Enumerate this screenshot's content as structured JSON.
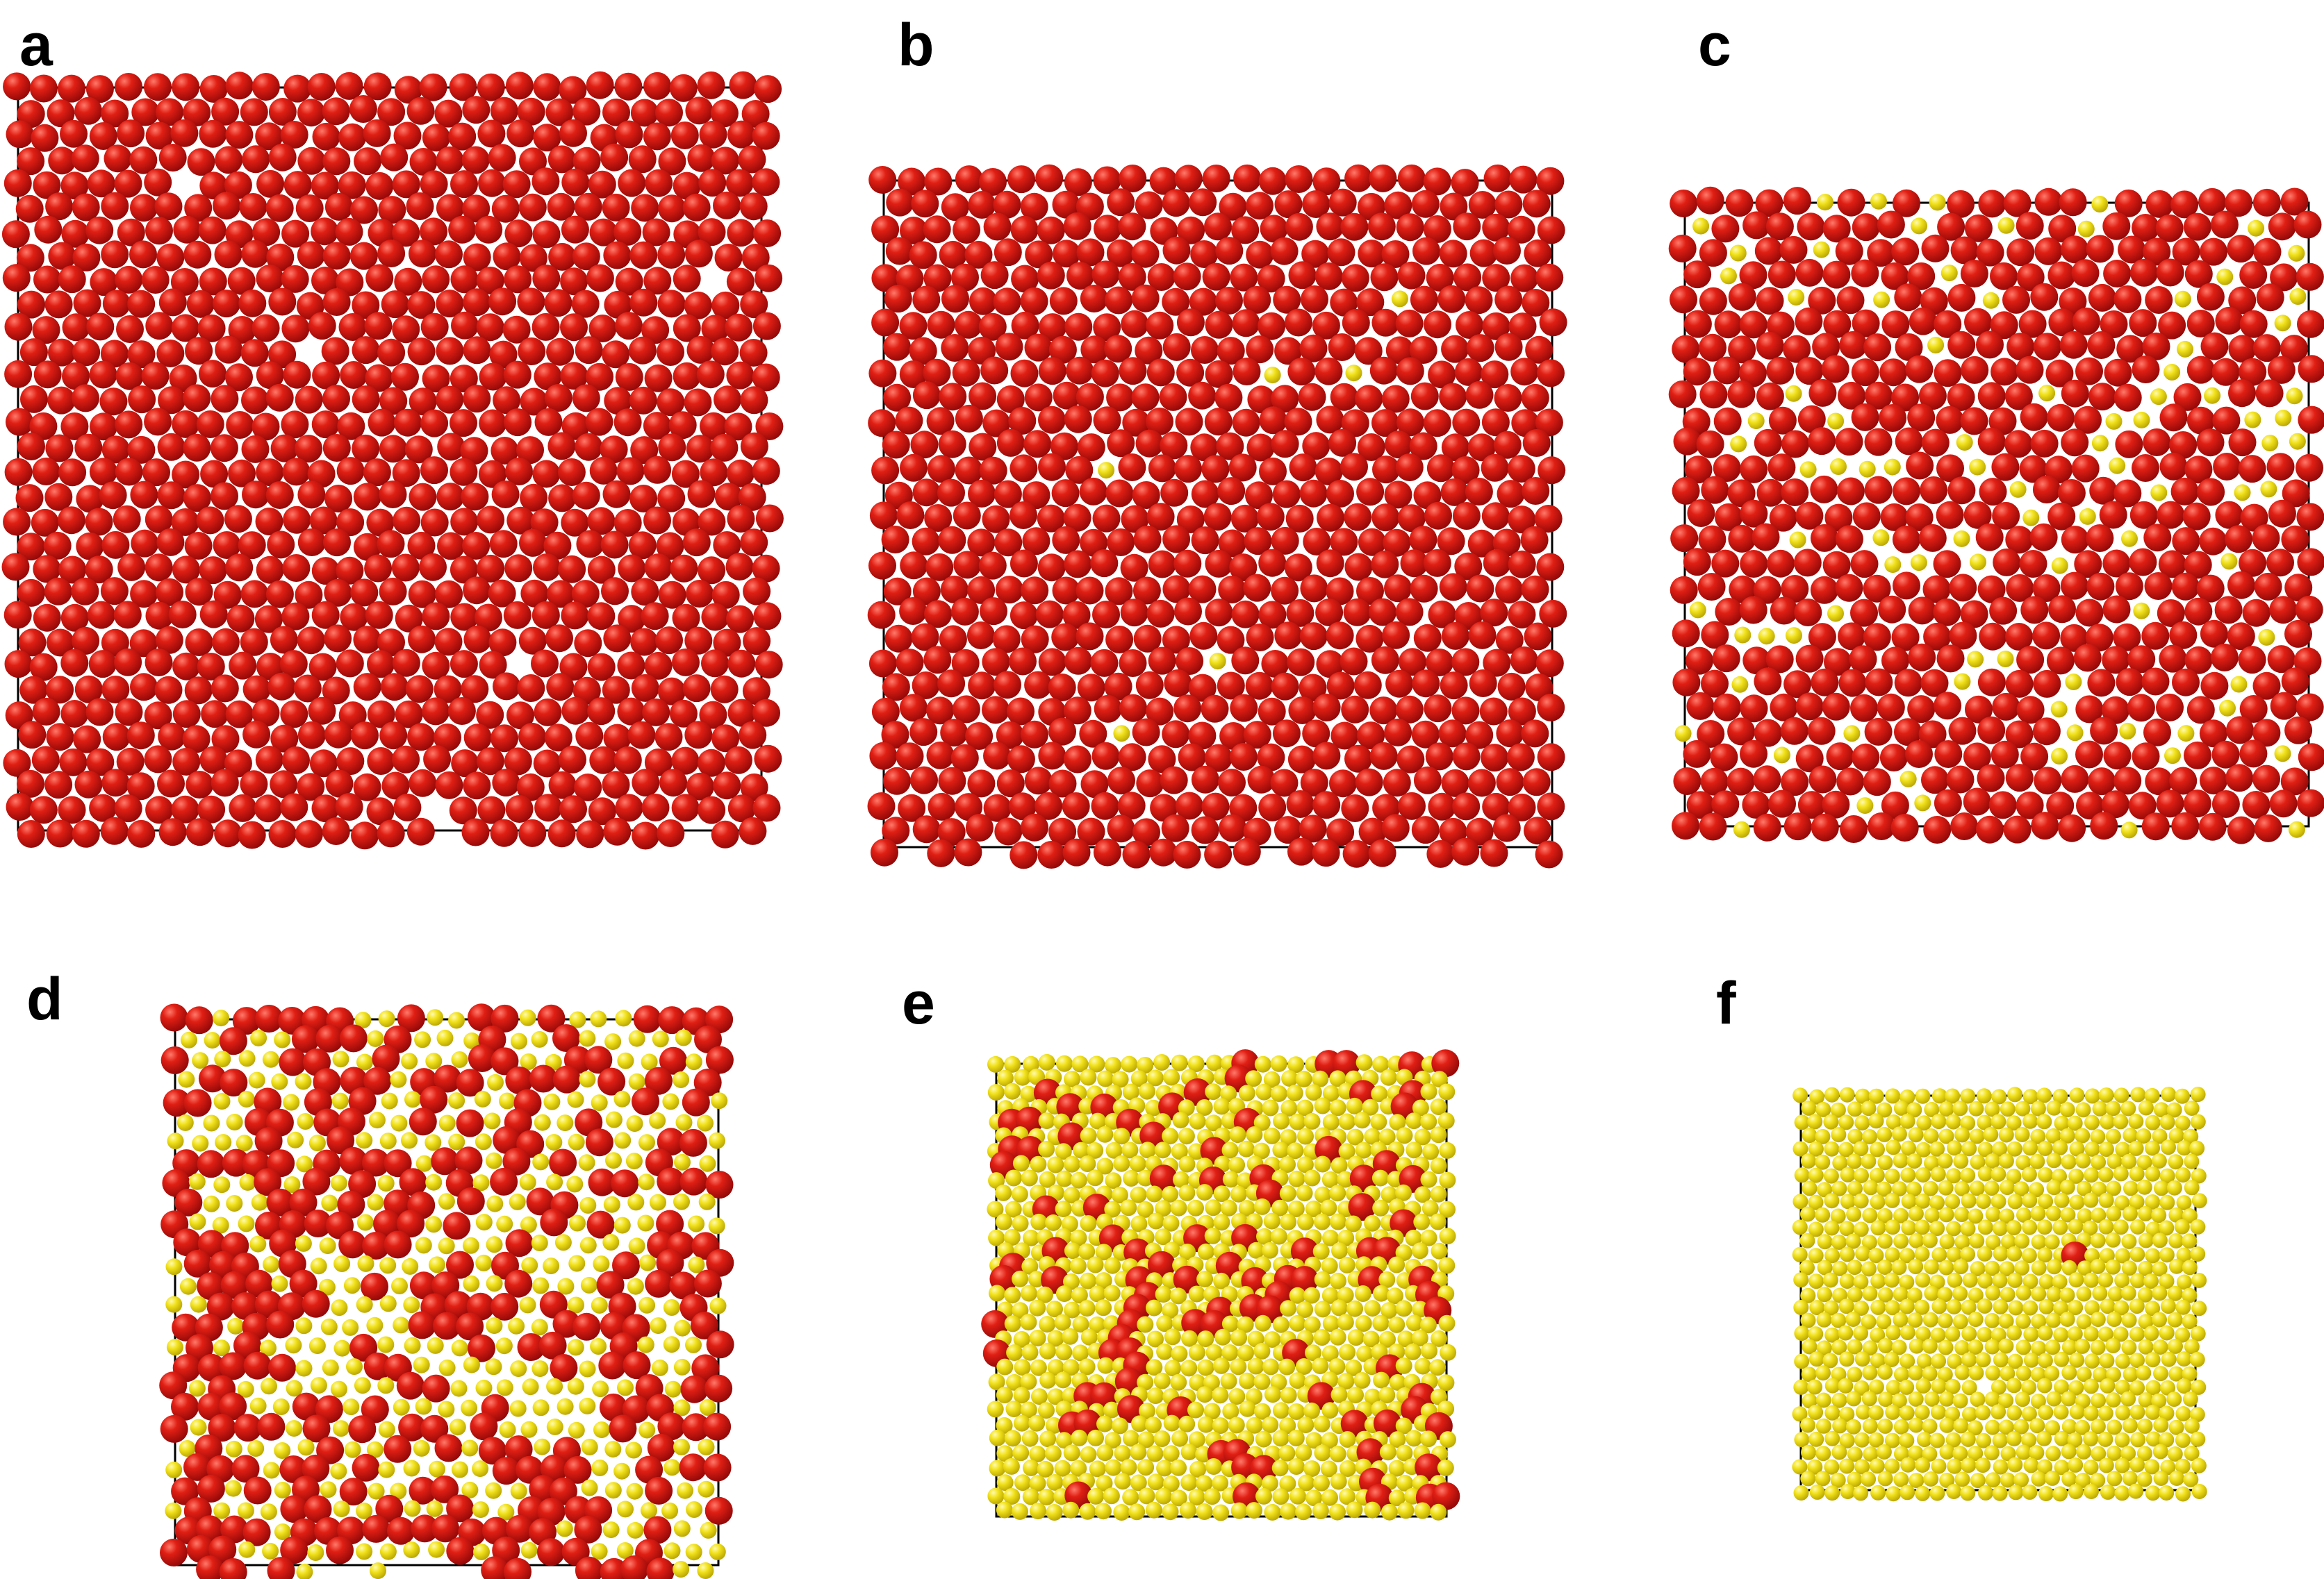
{
  "colors": {
    "large_particle": "#d41414",
    "large_particle_dark": "#8f0707",
    "large_particle_highlight": "#ff7a6a",
    "small_particle": "#f2e21c",
    "small_particle_dark": "#b7a300",
    "small_particle_highlight": "#fffab0",
    "frame": "#000000",
    "background": "#ffffff"
  },
  "panels": [
    {
      "id": "a",
      "label": "a",
      "large_fraction": 1.0,
      "vacancy_count": 6
    },
    {
      "id": "b",
      "label": "b",
      "large_fraction": 0.99,
      "vacancy_count": 0
    },
    {
      "id": "c",
      "label": "c",
      "large_fraction": 0.85,
      "vacancy_count": 0
    },
    {
      "id": "d",
      "label": "d",
      "large_fraction": 0.45,
      "vacancy_count": 0
    },
    {
      "id": "e",
      "label": "e",
      "large_fraction": 0.12,
      "vacancy_count": 0
    },
    {
      "id": "f",
      "label": "f",
      "large_fraction": 0.0,
      "single_large_particle": true,
      "vacancy_count": 1
    }
  ]
}
